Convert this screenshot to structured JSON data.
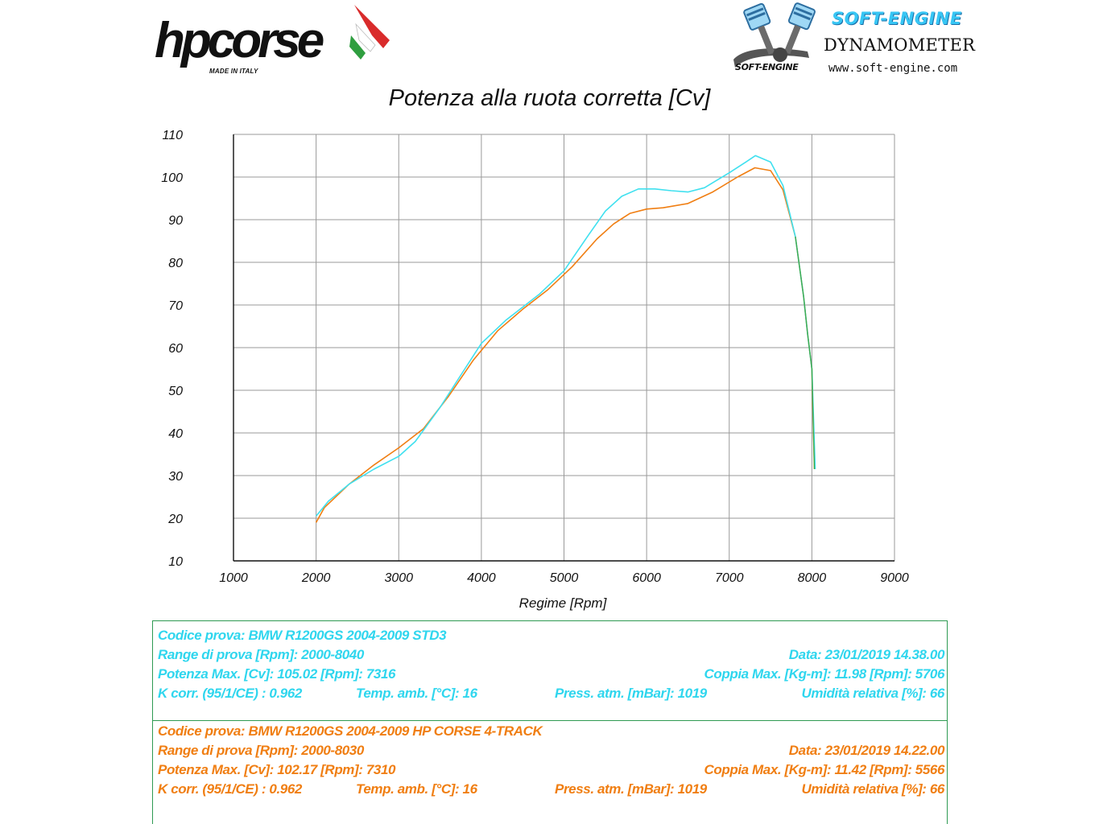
{
  "logos": {
    "hpcorse": {
      "wordmark": "hpcorse",
      "tagline": "MADE IN ITALY"
    },
    "softengine": {
      "brand": "SOFT-ENGINE",
      "subtitle": "DYNAMOMETER",
      "website": "www.soft-engine.com",
      "mark": "SOFT-ENGINE"
    }
  },
  "colors": {
    "series_std": "#3fe0ef",
    "series_hp": "#f07e12",
    "series_hp_tail": "#3daa4a",
    "grid": "#9a9a9a",
    "panel_border": "#2e9a52"
  },
  "chart_data": {
    "type": "line",
    "title": "Potenza alla ruota corretta [Cv]",
    "xlabel": "Regime [Rpm]",
    "ylabel": "",
    "xlim": [
      1000,
      9000
    ],
    "ylim": [
      10,
      110
    ],
    "xticks": [
      1000,
      2000,
      3000,
      4000,
      5000,
      6000,
      7000,
      8000,
      9000
    ],
    "yticks": [
      10,
      20,
      30,
      40,
      50,
      60,
      70,
      80,
      90,
      100,
      110
    ],
    "grid": true,
    "series": [
      {
        "name": "BMW R1200GS 2004-2009 STD3",
        "color": "#3fe0ef",
        "x": [
          2000,
          2150,
          2400,
          2700,
          3000,
          3200,
          3500,
          3800,
          4000,
          4300,
          4700,
          5000,
          5300,
          5500,
          5700,
          5900,
          6100,
          6300,
          6500,
          6700,
          7000,
          7200,
          7316,
          7500,
          7650,
          7800,
          7900,
          7950,
          8000,
          8040
        ],
        "y": [
          20.5,
          24,
          28,
          31.5,
          34.5,
          38,
          46,
          55,
          61,
          66.5,
          72.5,
          78,
          86.5,
          92,
          95.5,
          97.2,
          97.2,
          96.8,
          96.5,
          97.5,
          101,
          103.5,
          105.02,
          103.5,
          98,
          86,
          72,
          63,
          55,
          31.5
        ]
      },
      {
        "name": "BMW R1200GS 2004-2009 HP CORSE 4-TRACK",
        "color": "#f07e12",
        "x": [
          2000,
          2100,
          2400,
          2700,
          3000,
          3300,
          3600,
          3900,
          4200,
          4500,
          4800,
          5100,
          5400,
          5600,
          5800,
          6000,
          6200,
          6500,
          6800,
          7100,
          7310,
          7500,
          7650,
          7800,
          7900,
          7950,
          8000,
          8030
        ],
        "y": [
          19,
          22.5,
          28,
          32.5,
          36.5,
          41,
          48.5,
          57,
          64,
          69,
          73.5,
          79,
          85.5,
          89,
          91.5,
          92.5,
          92.8,
          93.8,
          96.5,
          100,
          102.17,
          101.5,
          97,
          86,
          72,
          63,
          55,
          31.5
        ]
      }
    ]
  },
  "panels": [
    {
      "codice": "Codice prova: BMW R1200GS 2004-2009 STD3",
      "range": "Range di prova [Rpm]: 2000-8040",
      "data": "Data: 23/01/2019   14.38.00",
      "potenza": "Potenza Max. [Cv]: 105.02   [Rpm]: 7316",
      "coppia": "Coppia Max. [Kg-m]: 11.98   [Rpm]: 5706",
      "kcorr": "K corr. (95/1/CE) : 0.962",
      "temp": "Temp. amb. [°C]: 16",
      "press": "Press. atm. [mBar]: 1019",
      "umidita": "Umidità relativa [%]: 66"
    },
    {
      "codice": "Codice prova: BMW R1200GS  2004-2009 HP CORSE 4-TRACK",
      "range": "Range di prova [Rpm]: 2000-8030",
      "data": "Data: 23/01/2019   14.22.00",
      "potenza": "Potenza Max. [Cv]: 102.17   [Rpm]: 7310",
      "coppia": "Coppia Max. [Kg-m]: 11.42   [Rpm]: 5566",
      "kcorr": "K corr. (95/1/CE) : 0.962",
      "temp": "Temp. amb. [°C]: 16",
      "press": "Press. atm. [mBar]: 1019",
      "umidita": "Umidità relativa [%]: 66"
    }
  ]
}
